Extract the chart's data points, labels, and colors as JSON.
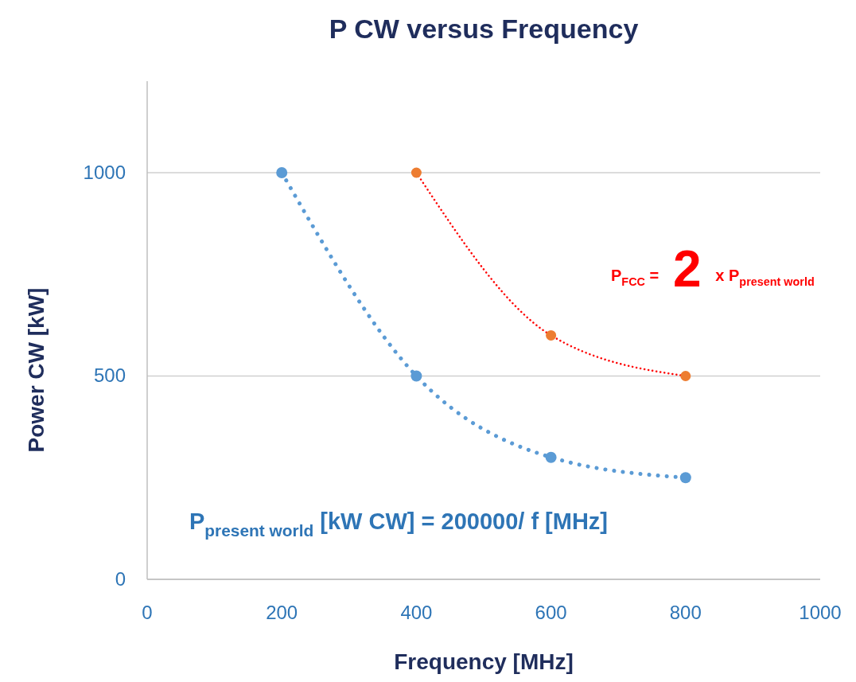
{
  "chart_data": {
    "type": "line",
    "title": "P CW versus Frequency",
    "xlabel": "Frequency [MHz]",
    "ylabel": "Power CW [kW]",
    "series": [
      {
        "color": "#5b9bd5",
        "values": [
          1000,
          500,
          300,
          250
        ],
        "x": [
          200,
          400,
          600,
          800
        ]
      },
      {
        "color": "#ed7d31",
        "values": [
          1000,
          600,
          500
        ],
        "x": [
          400,
          600,
          800
        ]
      }
    ],
    "xlim": [
      0,
      1000
    ],
    "xticks": [
      0,
      200,
      400,
      600,
      800,
      1000
    ],
    "ylim": [
      0,
      1225
    ],
    "yticks": [
      0,
      500,
      1000
    ],
    "grid": "y",
    "marker": "circle",
    "line_style": "dotted",
    "annotations": [
      "P$_{FCC}$ = 2 x P$_{present world}$",
      "P$_{present world}$ [kW CW] = 200000/ f [MHz]"
    ]
  }
}
